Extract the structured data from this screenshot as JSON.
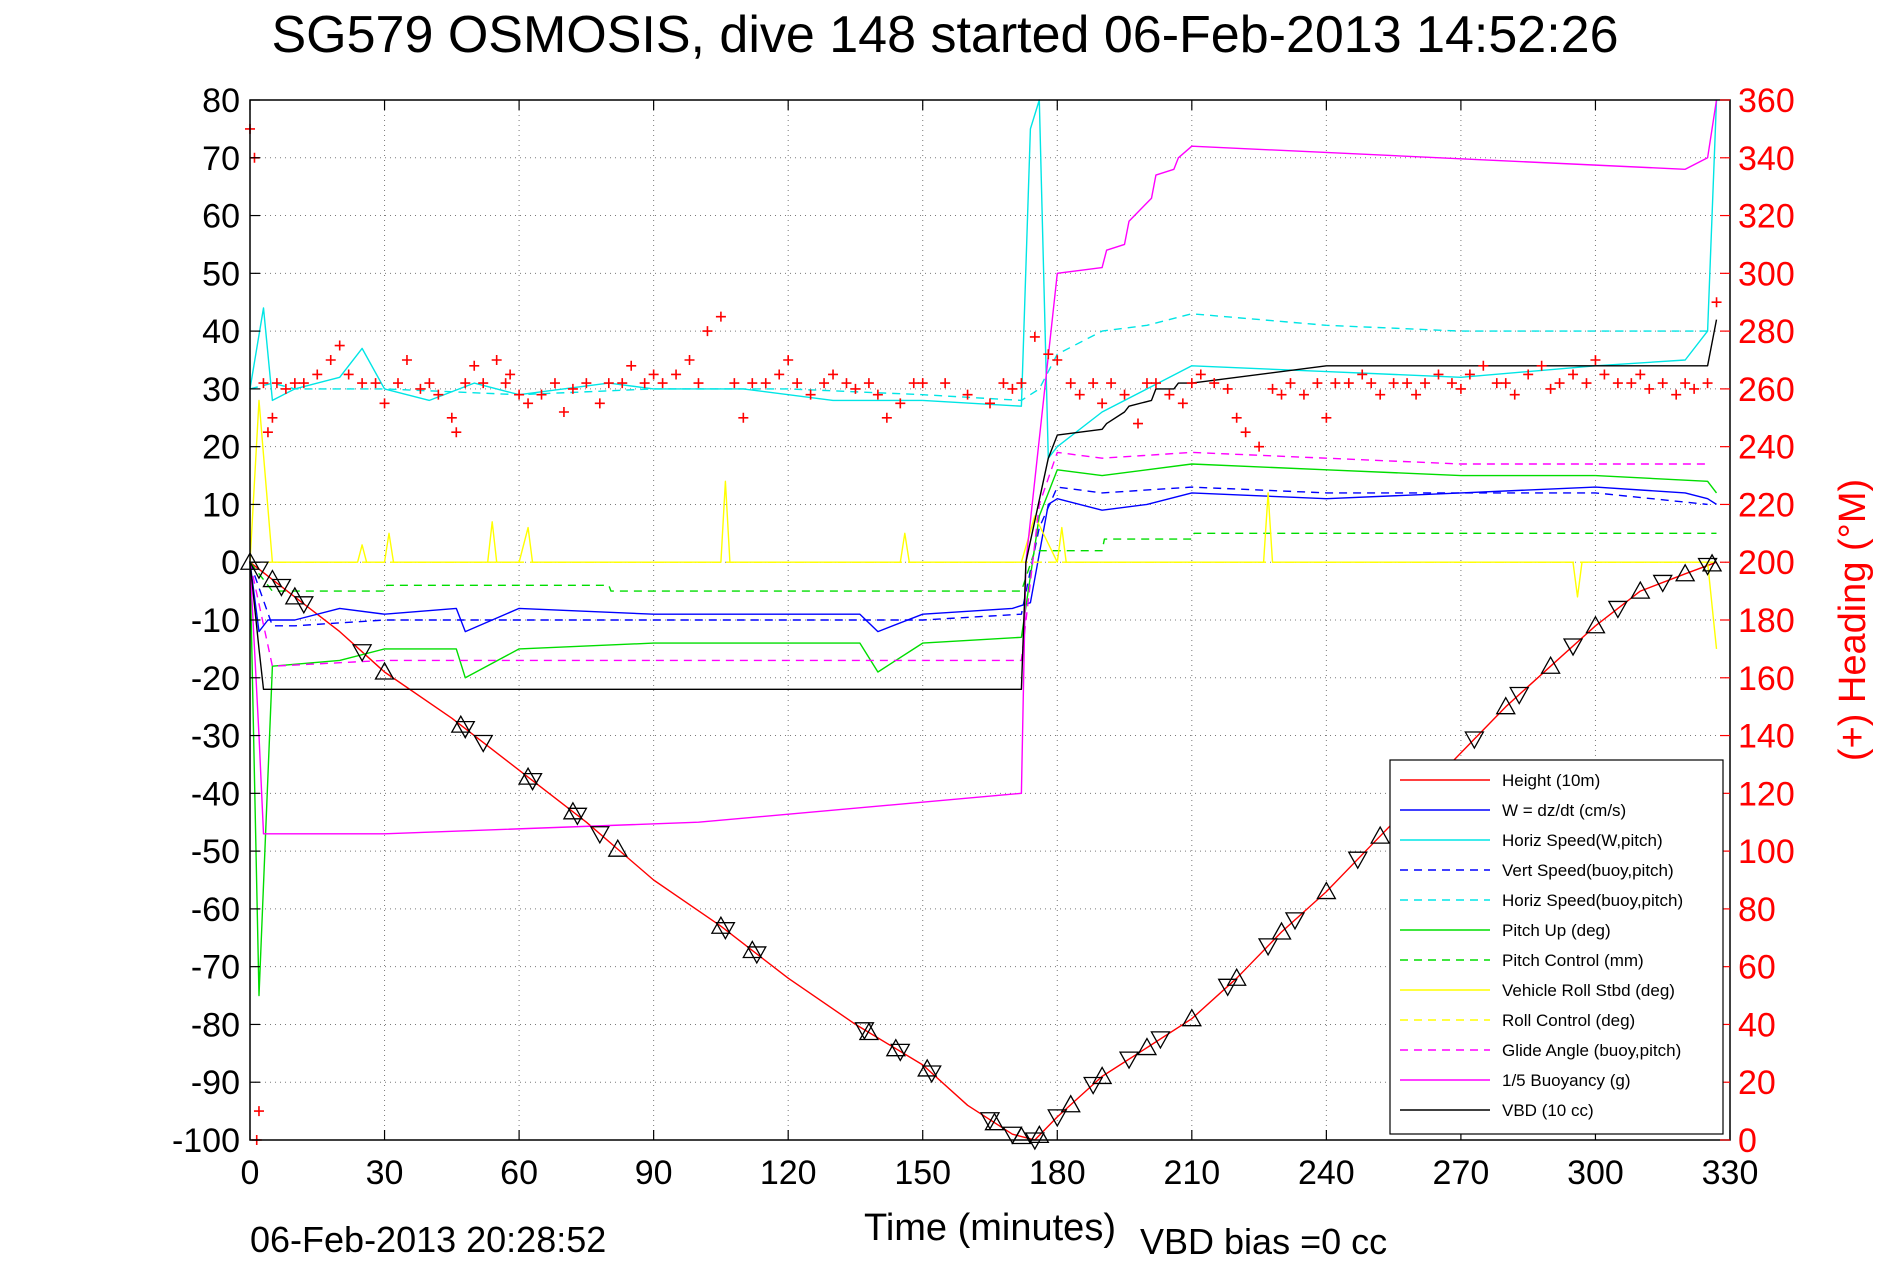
{
  "chart_data": {
    "type": "line",
    "title": "SG579 OSMOSIS, dive 148 started 06-Feb-2013 14:52:26",
    "xlabel": "Time (minutes)",
    "ylabel_right": "(+) Heading (°M)",
    "xlim": [
      0,
      330
    ],
    "ylim_left": [
      -100,
      80
    ],
    "ylim_right": [
      0,
      360
    ],
    "x_ticks": [
      "0",
      "30",
      "60",
      "90",
      "120",
      "150",
      "180",
      "210",
      "240",
      "270",
      "300",
      "330"
    ],
    "y_ticks_left": [
      "80",
      "70",
      "60",
      "50",
      "40",
      "30",
      "20",
      "10",
      "0",
      "-10",
      "-20",
      "-30",
      "-40",
      "-50",
      "-60",
      "-70",
      "-80",
      "-90",
      "-100"
    ],
    "y_ticks_right": [
      "360",
      "340",
      "320",
      "300",
      "280",
      "260",
      "240",
      "220",
      "200",
      "180",
      "160",
      "140",
      "120",
      "100",
      "80",
      "60",
      "40",
      "20",
      "0"
    ],
    "grid": true,
    "legend_position": "lower-right",
    "footer_left": "06-Feb-2013 20:28:52",
    "footer_right": "VBD bias =0 cc",
    "series": [
      {
        "name": "Height (10m)",
        "color": "#ff0000",
        "style": "solid",
        "x": [
          0,
          5,
          10,
          20,
          30,
          45,
          60,
          75,
          90,
          105,
          120,
          135,
          150,
          160,
          170,
          175,
          180,
          190,
          200,
          210,
          220,
          230,
          240,
          250,
          260,
          270,
          280,
          290,
          300,
          310,
          320,
          327
        ],
        "y": [
          0,
          -3,
          -6,
          -12,
          -19,
          -27,
          -36,
          -45,
          -55,
          -63,
          -72,
          -80,
          -87,
          -94,
          -99,
          -100,
          -96,
          -89,
          -84,
          -79,
          -72,
          -64,
          -57,
          -49,
          -41,
          -33,
          -25,
          -18,
          -11,
          -5,
          -2,
          0
        ]
      },
      {
        "name": "W = dz/dt (cm/s)",
        "color": "#0000ff",
        "style": "solid",
        "x": [
          0,
          2,
          4,
          10,
          20,
          30,
          46,
          48,
          60,
          90,
          120,
          136,
          140,
          150,
          170,
          174,
          178,
          180,
          190,
          200,
          210,
          240,
          270,
          300,
          320,
          325,
          327
        ],
        "y": [
          0,
          -12,
          -10,
          -10,
          -8,
          -9,
          -8,
          -12,
          -8,
          -9,
          -9,
          -9,
          -12,
          -9,
          -8,
          -7,
          10,
          11,
          9,
          10,
          12,
          11,
          12,
          13,
          12,
          11,
          10
        ]
      },
      {
        "name": "Horiz Speed(W,pitch)",
        "color": "#00e5e5",
        "style": "solid",
        "x": [
          0,
          3,
          5,
          10,
          20,
          25,
          30,
          40,
          50,
          60,
          80,
          90,
          110,
          130,
          150,
          172,
          174,
          176,
          178,
          180,
          190,
          200,
          210,
          240,
          270,
          300,
          320,
          325,
          327
        ],
        "y": [
          30,
          44,
          28,
          30,
          32,
          37,
          30,
          28,
          31,
          29,
          31,
          30,
          30,
          28,
          28,
          27,
          75,
          80,
          18,
          20,
          26,
          30,
          34,
          33,
          32,
          34,
          35,
          40,
          80
        ]
      },
      {
        "name": "Vert Speed(buoy,pitch)",
        "color": "#0000ff",
        "style": "dashed",
        "x": [
          0,
          5,
          10,
          30,
          60,
          90,
          120,
          150,
          172,
          176,
          180,
          190,
          210,
          240,
          270,
          300,
          325
        ],
        "y": [
          0,
          -11,
          -11,
          -10,
          -10,
          -10,
          -10,
          -10,
          -9,
          6,
          13,
          12,
          13,
          12,
          12,
          12,
          10
        ]
      },
      {
        "name": "Horiz Speed(buoy,pitch)",
        "color": "#00e5e5",
        "style": "dashed",
        "x": [
          0,
          5,
          10,
          30,
          60,
          90,
          120,
          150,
          172,
          176,
          180,
          190,
          200,
          210,
          240,
          270,
          300,
          325
        ],
        "y": [
          30,
          31,
          30,
          30,
          29,
          30,
          30,
          29,
          28,
          30,
          36,
          40,
          41,
          43,
          41,
          40,
          40,
          40
        ]
      },
      {
        "name": "Pitch Up (deg)",
        "color": "#00dd00",
        "style": "solid",
        "x": [
          0,
          2,
          5,
          20,
          30,
          46,
          48,
          60,
          90,
          120,
          136,
          140,
          150,
          172,
          176,
          180,
          190,
          210,
          240,
          270,
          300,
          325,
          327
        ],
        "y": [
          0,
          -75,
          -18,
          -17,
          -15,
          -15,
          -20,
          -15,
          -14,
          -14,
          -14,
          -19,
          -14,
          -13,
          8,
          16,
          15,
          17,
          16,
          15,
          15,
          14,
          12
        ]
      },
      {
        "name": "Pitch Control (mm)",
        "color": "#00dd00",
        "style": "dashed",
        "x": [
          0,
          5,
          30,
          30.5,
          80,
          80.5,
          172,
          175,
          190,
          190.5,
          210,
          210.5,
          327
        ],
        "y": [
          0,
          -5,
          -5,
          -4,
          -4,
          -5,
          -5,
          2,
          2,
          4,
          4,
          5,
          5
        ]
      },
      {
        "name": "Vehicle Roll Stbd (deg)",
        "color": "#ffff00",
        "style": "solid",
        "x": [
          0,
          2,
          5,
          10,
          20,
          24,
          25,
          26,
          30,
          31,
          32,
          40,
          50,
          53,
          54,
          55,
          60,
          62,
          63,
          64,
          90,
          105,
          106,
          107,
          120,
          140,
          145,
          146,
          147,
          172,
          175,
          180,
          181,
          182,
          200,
          210,
          220,
          226,
          227,
          228,
          240,
          260,
          290,
          295,
          296,
          297,
          320,
          325,
          327
        ],
        "y": [
          0,
          28,
          0,
          0,
          0,
          0,
          3,
          0,
          0,
          5,
          0,
          0,
          0,
          0,
          7,
          0,
          0,
          6,
          0,
          0,
          0,
          0,
          14,
          0,
          0,
          0,
          0,
          5,
          0,
          0,
          8,
          0,
          6,
          0,
          0,
          0,
          0,
          0,
          12,
          0,
          0,
          0,
          0,
          0,
          -6,
          0,
          0,
          0,
          -15
        ]
      },
      {
        "name": "Roll Control (deg)",
        "color": "#ffff00",
        "style": "dashed",
        "x": [
          0,
          327
        ],
        "y": [
          0,
          0
        ]
      },
      {
        "name": "Glide Angle (buoy,pitch)",
        "color": "#ff00ff",
        "style": "dashed",
        "x": [
          0,
          5,
          30,
          60,
          90,
          120,
          150,
          172,
          176,
          180,
          190,
          210,
          240,
          270,
          300,
          325
        ],
        "y": [
          0,
          -18,
          -17,
          -17,
          -17,
          -17,
          -17,
          -17,
          10,
          19,
          18,
          19,
          18,
          17,
          17,
          17
        ]
      },
      {
        "name": "1/5 Buoyancy (g)",
        "color": "#ff00ff",
        "style": "solid",
        "x": [
          0,
          2,
          3,
          30,
          100,
          172,
          173,
          180,
          190,
          191,
          195,
          196,
          201,
          202,
          206,
          207,
          210,
          320,
          325,
          327
        ],
        "y": [
          0,
          -30,
          -47,
          -47,
          -45,
          -40,
          0,
          50,
          51,
          54,
          55,
          59,
          63,
          67,
          68,
          70,
          72,
          68,
          70,
          80
        ]
      },
      {
        "name": "VBD (10 cc)",
        "color": "#000000",
        "style": "solid",
        "x": [
          0,
          2,
          3,
          172,
          173,
          178,
          180,
          190,
          191,
          195,
          196,
          201,
          202,
          206,
          207,
          210,
          240,
          270,
          300,
          325,
          327
        ],
        "y": [
          0,
          -15,
          -22,
          -22,
          0,
          18,
          22,
          23,
          24,
          26,
          27,
          28,
          30,
          30,
          31,
          31,
          34,
          34,
          34,
          34,
          42
        ]
      }
    ],
    "heading": {
      "name": "(+) Heading (°M)",
      "color": "#ff0000",
      "marker": "+",
      "axis": "right",
      "x": [
        0,
        1,
        1.5,
        2,
        3,
        4,
        5,
        6,
        8,
        10,
        12,
        15,
        18,
        20,
        22,
        25,
        28,
        30,
        33,
        35,
        38,
        40,
        42,
        45,
        46,
        48,
        50,
        52,
        55,
        57,
        58,
        60,
        62,
        65,
        68,
        70,
        72,
        75,
        78,
        80,
        83,
        85,
        88,
        90,
        92,
        95,
        98,
        100,
        102,
        105,
        108,
        110,
        112,
        115,
        118,
        120,
        122,
        125,
        128,
        130,
        133,
        135,
        138,
        140,
        142,
        145,
        148,
        150,
        155,
        160,
        165,
        168,
        170,
        172,
        175,
        178,
        180,
        183,
        185,
        188,
        190,
        192,
        195,
        198,
        200,
        202,
        205,
        208,
        210,
        212,
        215,
        218,
        220,
        222,
        225,
        228,
        230,
        232,
        235,
        238,
        240,
        242,
        245,
        248,
        250,
        252,
        255,
        258,
        260,
        262,
        265,
        268,
        270,
        272,
        275,
        278,
        280,
        282,
        285,
        288,
        290,
        292,
        295,
        298,
        300,
        302,
        305,
        308,
        310,
        312,
        315,
        318,
        320,
        322,
        325,
        327
      ],
      "y": [
        350,
        340,
        0,
        10,
        262,
        245,
        250,
        262,
        260,
        262,
        262,
        265,
        270,
        275,
        265,
        262,
        262,
        255,
        262,
        270,
        260,
        262,
        258,
        250,
        245,
        262,
        268,
        262,
        270,
        262,
        265,
        258,
        255,
        258,
        262,
        252,
        260,
        262,
        255,
        262,
        262,
        268,
        262,
        265,
        262,
        265,
        270,
        262,
        280,
        285,
        262,
        250,
        262,
        262,
        265,
        270,
        262,
        258,
        262,
        265,
        262,
        260,
        262,
        258,
        250,
        255,
        262,
        262,
        262,
        258,
        255,
        262,
        260,
        262,
        278,
        272,
        270,
        262,
        258,
        262,
        255,
        262,
        258,
        248,
        262,
        262,
        258,
        255,
        262,
        265,
        262,
        260,
        250,
        245,
        240,
        260,
        258,
        262,
        258,
        262,
        250,
        262,
        262,
        265,
        262,
        258,
        262,
        262,
        258,
        262,
        265,
        262,
        260,
        265,
        268,
        262,
        262,
        258,
        265,
        268,
        260,
        262,
        265,
        262,
        270,
        265,
        262,
        262,
        265,
        260,
        262,
        258,
        262,
        260,
        262,
        290
      ]
    },
    "triangles_up_x": [
      0,
      5,
      10,
      30,
      47,
      62,
      72,
      82,
      105,
      112,
      138,
      144,
      151,
      166,
      172,
      176,
      183,
      190,
      200,
      210,
      220,
      230,
      240,
      252,
      265,
      280,
      290,
      300,
      310,
      320,
      326
    ],
    "triangles_down_x": [
      2,
      7,
      12,
      25,
      48,
      52,
      63,
      73,
      78,
      106,
      113,
      137,
      145,
      152,
      165,
      170,
      175,
      180,
      188,
      196,
      203,
      218,
      227,
      233,
      247,
      260,
      273,
      283,
      295,
      305,
      315,
      325
    ]
  }
}
